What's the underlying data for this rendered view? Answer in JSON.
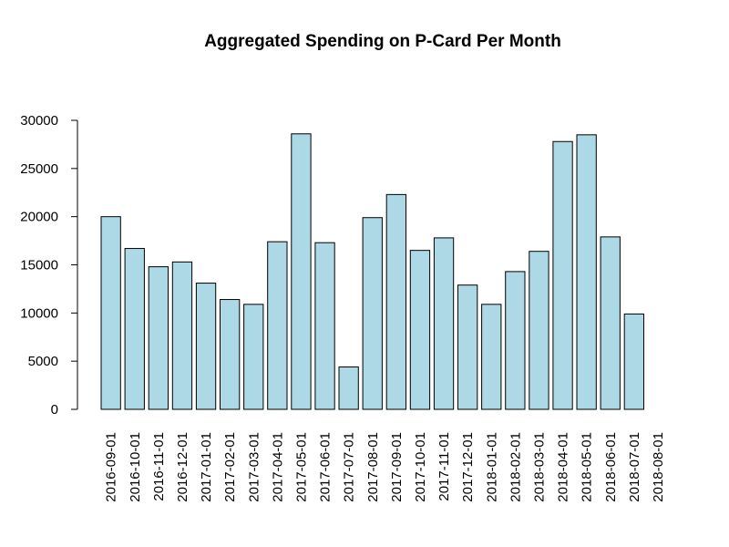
{
  "chart_data": {
    "type": "bar",
    "title": "Aggregated Spending on P-Card Per Month",
    "xlabel": "",
    "ylabel": "",
    "categories": [
      "2016-09-01",
      "2016-10-01",
      "2016-11-01",
      "2016-12-01",
      "2017-01-01",
      "2017-02-01",
      "2017-03-01",
      "2017-04-01",
      "2017-05-01",
      "2017-06-01",
      "2017-07-01",
      "2017-08-01",
      "2017-09-01",
      "2017-10-01",
      "2017-11-01",
      "2017-12-01",
      "2018-01-01",
      "2018-02-01",
      "2018-03-01",
      "2018-04-01",
      "2018-05-01",
      "2018-06-01",
      "2018-07-01",
      "2018-08-01"
    ],
    "values": [
      20000,
      16700,
      14800,
      15300,
      13100,
      11400,
      10900,
      17400,
      28600,
      17300,
      4400,
      19900,
      22300,
      16500,
      17800,
      12900,
      10900,
      14300,
      16400,
      27800,
      28500,
      17900,
      9900,
      0
    ],
    "yticks": [
      "0",
      "5000",
      "10000",
      "15000",
      "20000",
      "25000",
      "30000"
    ],
    "ylim": [
      0,
      30000
    ],
    "grid": false,
    "legend": "none",
    "colors": {
      "bar_fill": "#add8e6",
      "bar_stroke": "#000000"
    }
  }
}
